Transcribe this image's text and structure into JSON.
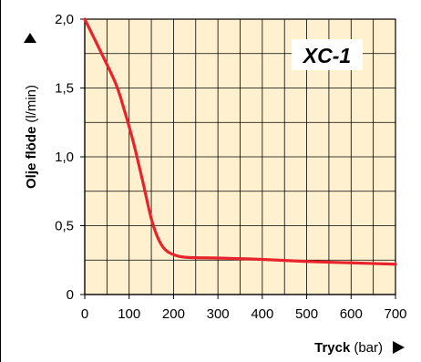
{
  "chart_data": {
    "type": "line",
    "title": "XC-1",
    "ylabel_bold": "Olje flöde",
    "ylabel_unit": "(l/min)",
    "xlabel_bold": "Tryck",
    "xlabel_unit": "(bar)",
    "xlim": [
      0,
      700
    ],
    "ylim": [
      0,
      2.0
    ],
    "x_ticks": [
      0,
      100,
      200,
      300,
      400,
      500,
      600,
      700
    ],
    "x_tick_labels": [
      "0",
      "100",
      "200",
      "300",
      "400",
      "500",
      "600",
      "700"
    ],
    "y_ticks": [
      0,
      0.5,
      1.0,
      1.5,
      2.0
    ],
    "y_tick_labels": [
      "0",
      "0,5",
      "1,0",
      "1,5",
      "2,0"
    ],
    "grid": true,
    "series": [
      {
        "color": "#e8232b",
        "x": [
          0,
          35,
          70,
          90,
          110,
          130,
          150,
          165,
          180,
          200,
          230,
          300,
          400,
          500,
          600,
          700
        ],
        "y": [
          2.0,
          1.77,
          1.53,
          1.33,
          1.1,
          0.83,
          0.55,
          0.41,
          0.33,
          0.29,
          0.27,
          0.265,
          0.255,
          0.24,
          0.23,
          0.22
        ]
      }
    ],
    "colors": {
      "plot_background": "#fff1cf",
      "grid": "#000000",
      "line": "#e8232b"
    }
  }
}
